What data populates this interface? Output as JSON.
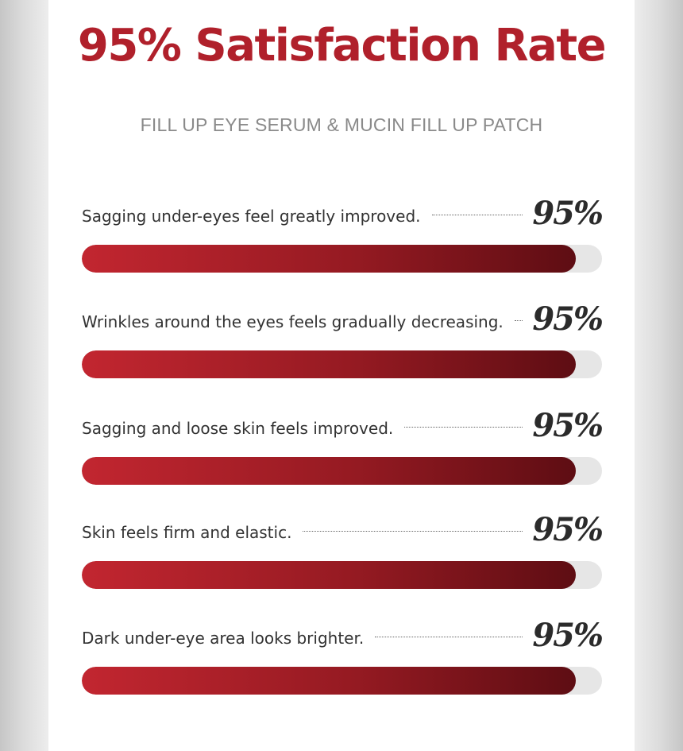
{
  "title": "95% Satisfaction Rate",
  "subtitle": "FILL UP EYE SERUM & MUCIN FILL UP PATCH",
  "colors": {
    "title": "#b0202b",
    "bar_start": "#c22630",
    "bar_end": "#5e0d13",
    "track": "#e6e6e6"
  },
  "chart_data": {
    "type": "bar",
    "orientation": "horizontal",
    "ylim": [
      0,
      100
    ],
    "categories": [
      "Sagging under-eyes feel greatly improved.",
      "Wrinkles around the eyes feels gradually decreasing.",
      "Sagging and loose skin feels improved.",
      "Skin feels firm and elastic.",
      "Dark under-eye area looks brighter."
    ],
    "values": [
      95,
      95,
      95,
      95,
      95
    ],
    "value_labels": [
      "95%",
      "95%",
      "95%",
      "95%",
      "95%"
    ]
  }
}
